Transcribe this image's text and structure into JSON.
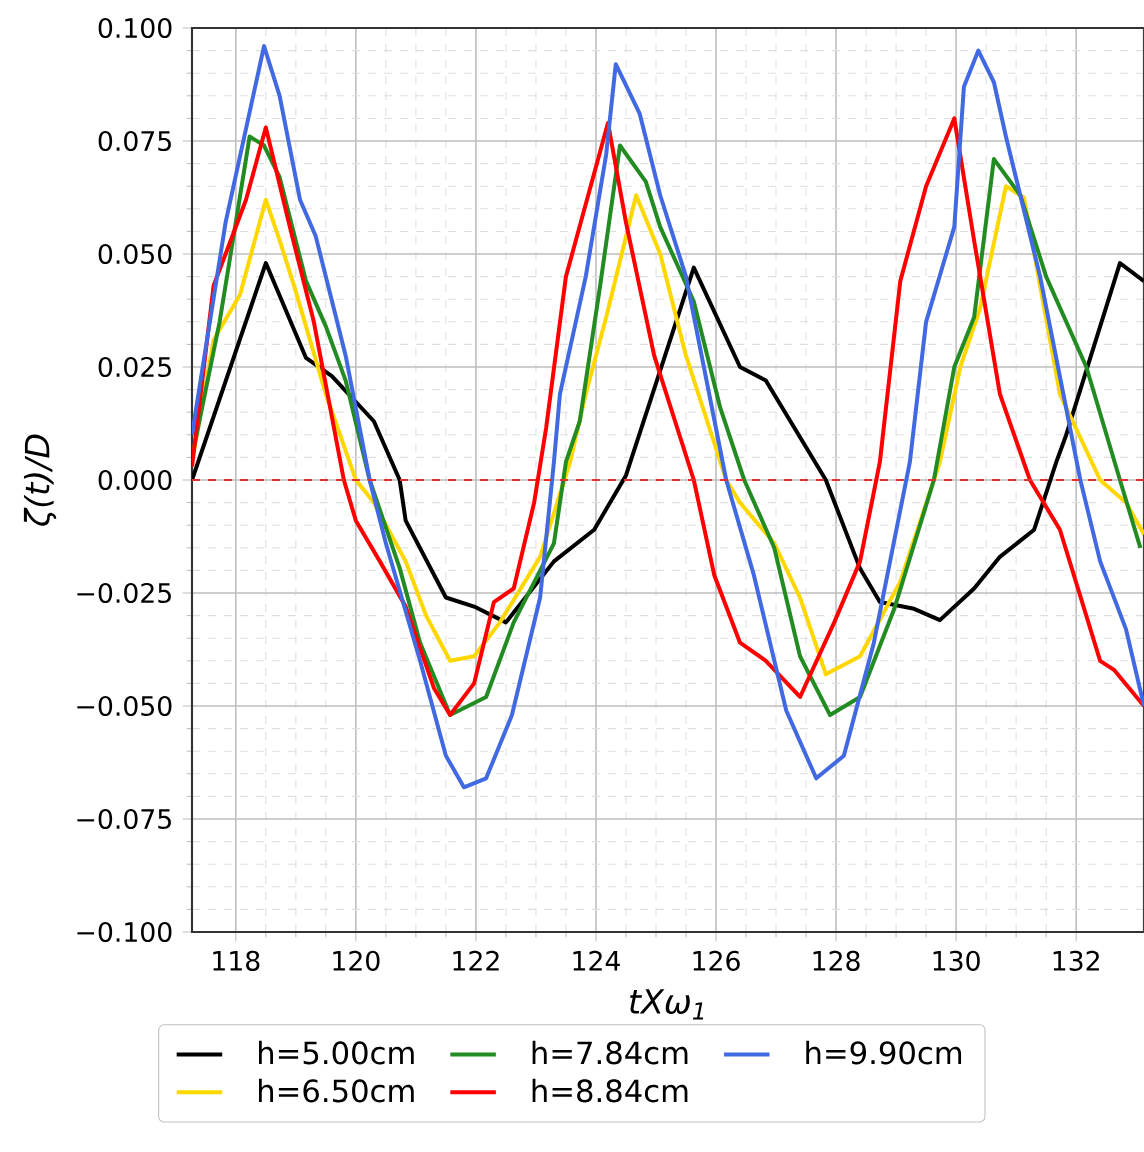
{
  "chart_data": {
    "type": "line",
    "xlabel": "tXω$_{1}$",
    "ylabel": "ζ(t)/D",
    "xlim": [
      117.27,
      133.13
    ],
    "ylim": [
      -0.1,
      0.1
    ],
    "xticks": [
      118,
      120,
      122,
      124,
      126,
      128,
      130,
      132
    ],
    "yticks": [
      {
        "value": -0.1,
        "label": "−0.100"
      },
      {
        "value": -0.075,
        "label": "−0.075"
      },
      {
        "value": -0.05,
        "label": "−0.050"
      },
      {
        "value": -0.025,
        "label": "−0.025"
      },
      {
        "value": 0,
        "label": "0.000"
      },
      {
        "value": 0.025,
        "label": "0.025"
      },
      {
        "value": 0.05,
        "label": "0.050"
      },
      {
        "value": 0.075,
        "label": "0.075"
      },
      {
        "value": 0.1,
        "label": "0.100"
      }
    ],
    "grid": true,
    "legend": "bottom",
    "marker": "none",
    "line_style": "solid",
    "ref_lines": [
      {
        "axis": "y",
        "value": 0,
        "color": "#e03030",
        "line_style": "dashed"
      }
    ],
    "series": [
      {
        "name": "h=5.00cm",
        "color": "#000000",
        "x": [
          117.27,
          118.5,
          119.17,
          119.6,
          120.3,
          120.73,
          120.83,
          121.5,
          121.97,
          122.5,
          123.3,
          123.97,
          124.5,
          125.63,
          126.4,
          126.83,
          127.83,
          128.4,
          128.73,
          129.3,
          129.73,
          130.3,
          130.73,
          131.3,
          131.67,
          131.83,
          132.73,
          133.13
        ],
        "values": [
          0.0,
          0.048,
          0.027,
          0.023,
          0.013,
          0.0,
          -0.009,
          -0.026,
          -0.028,
          -0.0315,
          -0.018,
          -0.011,
          0.001,
          0.047,
          0.025,
          0.022,
          0.0,
          -0.0196,
          -0.027,
          -0.0285,
          -0.031,
          -0.024,
          -0.017,
          -0.011,
          0.004,
          0.0098,
          0.048,
          0.044
        ]
      },
      {
        "name": "h=6.50cm",
        "color": "#ffd700",
        "x": [
          117.27,
          117.63,
          118.07,
          118.5,
          118.73,
          118.97,
          119.5,
          120.0,
          120.3,
          120.83,
          121.17,
          121.57,
          121.97,
          122.4,
          123.07,
          123.57,
          123.83,
          124.17,
          124.67,
          125.07,
          125.5,
          126.17,
          126.4,
          126.97,
          127.4,
          127.83,
          128.4,
          129.07,
          129.73,
          130.07,
          130.4,
          130.83,
          131.13,
          131.73,
          132.4,
          132.83,
          133.13
        ],
        "values": [
          0.004,
          0.031,
          0.041,
          0.062,
          0.053,
          0.043,
          0.019,
          0.0,
          -0.005,
          -0.018,
          -0.03,
          -0.04,
          -0.039,
          -0.0315,
          -0.017,
          0.004,
          0.019,
          0.036,
          0.063,
          0.05,
          0.0275,
          0.0,
          -0.005,
          -0.014,
          -0.026,
          -0.043,
          -0.039,
          -0.0225,
          0.004,
          0.025,
          0.038,
          0.065,
          0.0625,
          0.019,
          0.0,
          -0.005,
          -0.012
        ]
      },
      {
        "name": "h=7.84cm",
        "color": "#228b22",
        "x": [
          117.27,
          117.73,
          118.0,
          118.23,
          118.47,
          118.73,
          119.17,
          119.5,
          119.83,
          120.23,
          120.73,
          121.07,
          121.57,
          122.17,
          122.63,
          123.3,
          123.5,
          123.73,
          124.07,
          124.4,
          124.83,
          125.07,
          125.63,
          126.07,
          126.47,
          126.97,
          127.4,
          127.9,
          128.4,
          128.97,
          129.63,
          129.97,
          130.3,
          130.63,
          131.07,
          131.5,
          132.17,
          132.73,
          133.07
        ],
        "values": [
          0.005,
          0.035,
          0.057,
          0.076,
          0.074,
          0.067,
          0.044,
          0.034,
          0.022,
          0.0,
          -0.0195,
          -0.036,
          -0.052,
          -0.048,
          -0.0315,
          -0.014,
          0.004,
          0.013,
          0.043,
          0.074,
          0.066,
          0.056,
          0.0395,
          0.016,
          0.0,
          -0.015,
          -0.039,
          -0.052,
          -0.048,
          -0.0285,
          0.0,
          0.025,
          0.036,
          0.071,
          0.063,
          0.045,
          0.025,
          0.0,
          -0.015
        ]
      },
      {
        "name": "h=8.84cm",
        "color": "#ff0000",
        "x": [
          117.27,
          117.63,
          117.83,
          118.17,
          118.5,
          118.9,
          119.3,
          119.8,
          120.0,
          120.4,
          120.83,
          121.3,
          121.57,
          121.97,
          122.3,
          122.63,
          122.97,
          123.17,
          123.5,
          124.2,
          124.5,
          124.97,
          125.63,
          125.97,
          126.4,
          126.83,
          127.4,
          127.97,
          128.4,
          128.73,
          129.07,
          129.5,
          129.97,
          130.3,
          130.73,
          131.23,
          131.73,
          132.4,
          132.63,
          133.13
        ],
        "values": [
          0.003,
          0.043,
          0.05,
          0.062,
          0.078,
          0.056,
          0.035,
          0.0,
          -0.009,
          -0.018,
          -0.028,
          -0.046,
          -0.052,
          -0.045,
          -0.027,
          -0.024,
          -0.005,
          0.0115,
          0.045,
          0.079,
          0.057,
          0.0275,
          0.0,
          -0.021,
          -0.036,
          -0.04,
          -0.048,
          -0.0315,
          -0.018,
          0.004,
          0.044,
          0.065,
          0.08,
          0.053,
          0.019,
          0.0,
          -0.011,
          -0.04,
          -0.042,
          -0.05
        ]
      },
      {
        "name": "h=9.90cm",
        "color": "#4169e1",
        "x": [
          117.27,
          117.83,
          118.47,
          118.73,
          119.07,
          119.33,
          119.83,
          120.23,
          120.5,
          121.07,
          121.5,
          121.8,
          122.17,
          122.6,
          123.07,
          123.3,
          123.4,
          123.83,
          124.17,
          124.33,
          124.73,
          125.07,
          125.5,
          126.17,
          126.63,
          127.17,
          127.67,
          128.13,
          128.63,
          129.23,
          129.5,
          129.97,
          130.13,
          130.37,
          130.63,
          130.83,
          131.4,
          132.07,
          132.4,
          132.83,
          133.13
        ],
        "values": [
          0.01,
          0.057,
          0.096,
          0.085,
          0.062,
          0.054,
          0.0275,
          0.0,
          -0.014,
          -0.04,
          -0.061,
          -0.068,
          -0.066,
          -0.052,
          -0.026,
          0.004,
          0.019,
          0.045,
          0.072,
          0.092,
          0.081,
          0.063,
          0.045,
          0.0,
          -0.021,
          -0.051,
          -0.066,
          -0.061,
          -0.036,
          0.004,
          0.035,
          0.056,
          0.087,
          0.095,
          0.088,
          0.076,
          0.045,
          0.0,
          -0.018,
          -0.033,
          -0.05
        ]
      }
    ]
  }
}
